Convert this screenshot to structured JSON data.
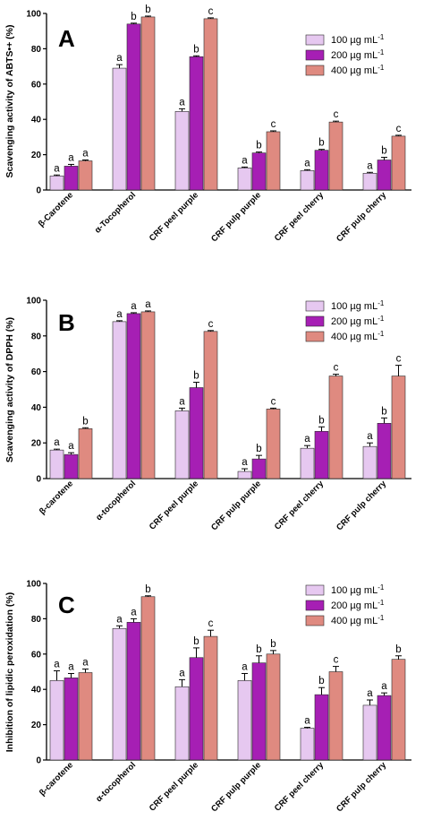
{
  "colors": {
    "s100": "#e6c8f0",
    "s200": "#a61fb4",
    "s400": "#df8a80",
    "axis": "#000000"
  },
  "legend": [
    "100 µg mL⁻¹",
    "200 µg mL⁻¹",
    "400 µg mL⁻¹"
  ],
  "chart_data": [
    {
      "type": "bar",
      "panel": "A",
      "ylabel": "Scavenging activity of ABTS•+ (%)",
      "ylim": [
        0,
        100
      ],
      "yticks": [
        "0",
        "20",
        "40",
        "60",
        "80",
        "100"
      ],
      "categories": [
        "β-Carotene",
        "α-Tocopherol",
        "CRF peel purple",
        "CRF pulp purple",
        "CRF peel cherry",
        "CRF pulp cherry"
      ],
      "series": [
        {
          "name": "100 µg mL⁻¹",
          "values": [
            8,
            69,
            44.5,
            12.5,
            11,
            9.5
          ],
          "errors": [
            0.5,
            2,
            1.5,
            0.5,
            0.5,
            0.5
          ],
          "letters": [
            "a",
            "a",
            "a",
            "a",
            "a",
            "a"
          ]
        },
        {
          "name": "200 µg mL⁻¹",
          "values": [
            13.5,
            94,
            75.5,
            21,
            22.5,
            17
          ],
          "errors": [
            1,
            0.5,
            0.5,
            0.5,
            0.5,
            1.5
          ],
          "letters": [
            "a",
            "b",
            "b",
            "b",
            "b",
            "b"
          ]
        },
        {
          "name": "400 µg mL⁻¹",
          "values": [
            16.5,
            98,
            97,
            33,
            38.5,
            30.5
          ],
          "errors": [
            0.5,
            0.5,
            0.5,
            0.5,
            0.5,
            0.5
          ],
          "letters": [
            "a",
            "b",
            "c",
            "c",
            "c",
            "c"
          ]
        }
      ]
    },
    {
      "type": "bar",
      "panel": "B",
      "ylabel": "Scavenging activity of DPPH (%)",
      "ylim": [
        0,
        100
      ],
      "yticks": [
        "0",
        "20",
        "40",
        "60",
        "80",
        "100"
      ],
      "categories": [
        "β-carotene",
        "α-tocopherol",
        "CRF peel purple",
        "CRF pulp purple",
        "CRF peel cherry",
        "CRF pulp cherry"
      ],
      "series": [
        {
          "name": "100 µg mL⁻¹",
          "values": [
            16,
            88,
            38,
            4,
            17,
            18
          ],
          "errors": [
            0.5,
            0.5,
            1.5,
            1.5,
            1.5,
            2
          ],
          "letters": [
            "a",
            "a",
            "a",
            "a",
            "a",
            "a"
          ]
        },
        {
          "name": "200 µg mL⁻¹",
          "values": [
            13.5,
            92.5,
            51,
            11,
            26.5,
            31
          ],
          "errors": [
            1,
            0.5,
            3,
            2,
            2.5,
            3
          ],
          "letters": [
            "a",
            "a",
            "b",
            "b",
            "b",
            "b"
          ]
        },
        {
          "name": "400 µg mL⁻¹",
          "values": [
            28,
            93.5,
            82.5,
            39,
            57.5,
            57.5
          ],
          "errors": [
            0.5,
            0.5,
            0.5,
            0.5,
            1,
            6
          ],
          "letters": [
            "b",
            "a",
            "c",
            "c",
            "c",
            "c"
          ]
        }
      ]
    },
    {
      "type": "bar",
      "panel": "C",
      "ylabel": "Inhibition of lipidic peroxidation (%)",
      "ylim": [
        0,
        100
      ],
      "yticks": [
        "0",
        "20",
        "40",
        "60",
        "80",
        "100"
      ],
      "categories": [
        "β-carotene",
        "α-tocopherol",
        "CRF peel purple",
        "CRF pulp purple",
        "CRF peel cherry",
        "CRF pulp cherry"
      ],
      "series": [
        {
          "name": "100 µg mL⁻¹",
          "values": [
            45,
            74.5,
            41.5,
            45,
            18,
            31
          ],
          "errors": [
            5.5,
            1.5,
            4,
            4,
            0.5,
            3
          ],
          "letters": [
            "a",
            "a",
            "a",
            "a",
            "a",
            "a"
          ]
        },
        {
          "name": "200 µg mL⁻¹",
          "values": [
            46.5,
            78,
            58,
            55,
            37,
            36.5
          ],
          "errors": [
            2.5,
            2,
            5.5,
            4,
            4,
            1.5
          ],
          "letters": [
            "a",
            "a",
            "b",
            "b",
            "b",
            "a"
          ]
        },
        {
          "name": "400 µg mL⁻¹",
          "values": [
            49.5,
            92.5,
            70,
            60,
            50,
            57
          ],
          "errors": [
            2,
            0.5,
            3.5,
            2,
            3,
            2
          ],
          "letters": [
            "a",
            "b",
            "c",
            "b",
            "c",
            "b"
          ]
        }
      ]
    }
  ]
}
